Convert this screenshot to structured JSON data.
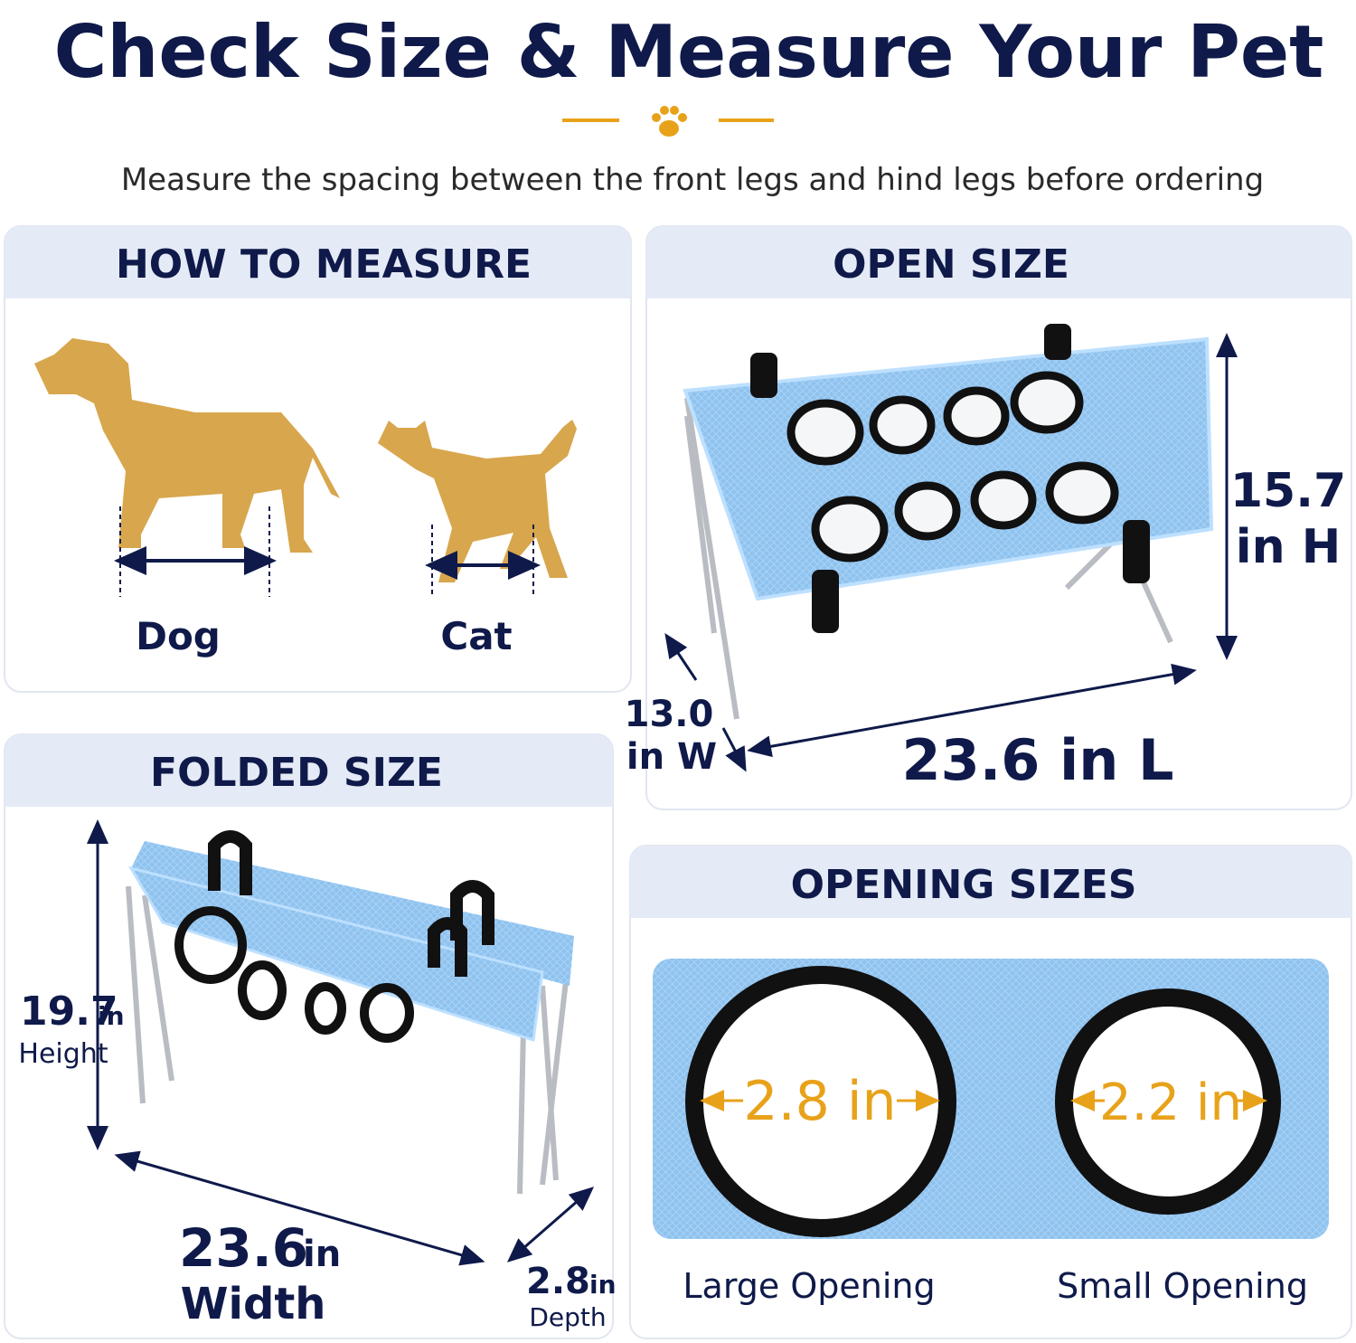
{
  "header": {
    "title": "Check Size & Measure Your Pet",
    "subtitle": "Measure the spacing between the front legs and hind legs before ordering"
  },
  "panels": {
    "how_to_measure": {
      "title": "HOW TO MEASURE",
      "dog": "Dog",
      "cat": "Cat"
    },
    "open_size": {
      "title": "OPEN SIZE",
      "height_value": "15.7",
      "height_unit": "in H",
      "width_value": "13.0",
      "width_unit": "in W",
      "length": "23.6 in L"
    },
    "folded_size": {
      "title": "FOLDED SIZE",
      "height_value": "19.7",
      "height_unit": "in",
      "height_label": "Height",
      "width_value": "23.6",
      "width_unit": "in",
      "width_label": "Width",
      "depth_value": "2.8",
      "depth_unit": "in",
      "depth_label": "Depth"
    },
    "opening_sizes": {
      "title": "OPENING SIZES",
      "large_size": "2.8 in",
      "large_label": "Large Opening",
      "small_size": "2.2 in",
      "small_label": "Small Opening"
    }
  }
}
